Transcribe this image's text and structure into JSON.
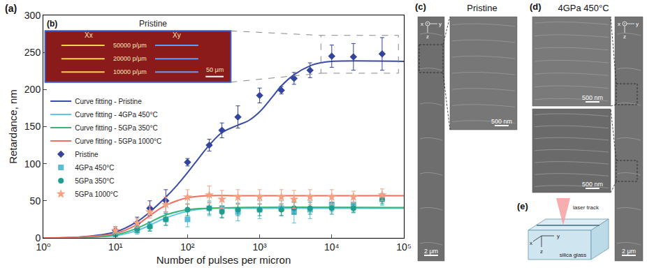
{
  "chart_data": {
    "type": "scatter",
    "annotations": [
      "(a)"
    ],
    "x_label": "Number of pulses per micron",
    "y_label": "Retardance, nm",
    "log": "x",
    "xlim": [
      1,
      100000
    ],
    "xticks": [
      {
        "value": 1,
        "label": "10⁰"
      },
      {
        "value": 10,
        "label": "10¹"
      },
      {
        "value": 100,
        "label": "10²"
      },
      {
        "value": 1000,
        "label": "10³"
      },
      {
        "value": 10000,
        "label": "10⁴"
      },
      {
        "value": 100000,
        "label": "10⁵"
      }
    ],
    "ylim": [
      0,
      300
    ],
    "yticks": [
      0,
      50,
      100,
      150,
      200,
      250,
      300
    ],
    "grid": false,
    "legend": "left",
    "series": [
      {
        "name": "Curve fitting - Pristine",
        "type": "line",
        "line_style": "solid",
        "color": "#3a4ba8",
        "x": [
          1,
          3,
          10,
          20,
          30,
          50,
          70,
          100,
          150,
          200,
          300,
          500,
          700,
          1000,
          1500,
          2000,
          3000,
          5000,
          7000,
          10000,
          100000
        ],
        "values": [
          0,
          1,
          8,
          22,
          35,
          55,
          70,
          88,
          110,
          125,
          142,
          152,
          158,
          170,
          190,
          205,
          220,
          232,
          236,
          238,
          238
        ]
      },
      {
        "name": "Curve fitting - 4GPa 450°C",
        "type": "line",
        "line_style": "solid",
        "color": "#5fc8e8",
        "x": [
          1,
          3,
          10,
          20,
          30,
          50,
          100,
          200,
          500,
          100000
        ],
        "values": [
          0,
          0.5,
          3,
          10,
          17,
          27,
          36,
          40,
          40,
          40
        ]
      },
      {
        "name": "Curve fitting - 5GPa 350°C",
        "type": "line",
        "line_style": "solid",
        "color": "#3cb371",
        "x": [
          1,
          3,
          10,
          20,
          30,
          50,
          100,
          200,
          500,
          100000
        ],
        "values": [
          0,
          0.6,
          4,
          13,
          21,
          31,
          38,
          40,
          41,
          41
        ]
      },
      {
        "name": "Curve fitting - 5GPa 1000°C",
        "type": "line",
        "line_style": "solid",
        "color": "#f07060",
        "x": [
          1,
          3,
          10,
          20,
          30,
          50,
          100,
          200,
          500,
          100000
        ],
        "values": [
          0,
          1,
          6,
          18,
          30,
          44,
          54,
          57,
          57,
          57
        ]
      },
      {
        "name": "Pristine",
        "type": "scatter",
        "marker": "diamond",
        "color": "#34449c",
        "x": [
          10,
          20,
          30,
          50,
          100,
          200,
          300,
          500,
          1000,
          2000,
          3000,
          5000,
          10000,
          20000,
          50000
        ],
        "values": [
          10,
          20,
          40,
          50,
          102,
          125,
          145,
          163,
          192,
          199,
          215,
          226,
          245,
          244,
          248
        ],
        "errors": [
          5,
          8,
          10,
          15,
          5,
          8,
          10,
          15,
          10,
          5,
          8,
          10,
          15,
          18,
          22
        ]
      },
      {
        "name": "4GPa 450°C",
        "type": "scatter",
        "marker": "square",
        "color": "#5bbcd6",
        "x": [
          10,
          20,
          30,
          50,
          100,
          200,
          300,
          500,
          1000,
          2000,
          3000,
          5000,
          10000,
          20000,
          50000
        ],
        "values": [
          5,
          10,
          16,
          25,
          25,
          40,
          40,
          35,
          38,
          40,
          35,
          38,
          45,
          45,
          52
        ],
        "errors": [
          3,
          5,
          6,
          8,
          10,
          10,
          12,
          12,
          12,
          10,
          15,
          12,
          10,
          10,
          8
        ]
      },
      {
        "name": "5GPa 350°C",
        "type": "scatter",
        "marker": "circle",
        "color": "#1f9e8f",
        "x": [
          10,
          20,
          30,
          50,
          100,
          200,
          300,
          500,
          1000,
          2000,
          3000,
          5000,
          10000,
          20000,
          50000
        ],
        "values": [
          5,
          12,
          15,
          25,
          38,
          40,
          35,
          38,
          38,
          38,
          40,
          40,
          40,
          40,
          52
        ],
        "errors": [
          3,
          5,
          6,
          8,
          8,
          8,
          8,
          8,
          8,
          8,
          8,
          8,
          8,
          6,
          6
        ]
      },
      {
        "name": "5GPa 1000°C",
        "type": "scatter",
        "marker": "star",
        "color": "#f5a080",
        "x": [
          10,
          20,
          30,
          50,
          100,
          200,
          300,
          500,
          1000,
          2000,
          3000,
          5000,
          10000,
          20000,
          50000
        ],
        "values": [
          10,
          20,
          35,
          45,
          55,
          58,
          52,
          55,
          55,
          55,
          52,
          55,
          55,
          55,
          58
        ],
        "errors": [
          5,
          6,
          8,
          10,
          10,
          12,
          12,
          10,
          10,
          10,
          12,
          10,
          10,
          8,
          8
        ]
      }
    ],
    "inset": {
      "label": "(b)",
      "title": "Pristine",
      "columns": [
        "Xx",
        "Xy"
      ],
      "rows": [
        "50000 p/μm",
        "20000 p/μm",
        "10000 p/μm"
      ],
      "scale_bar": "50 μm"
    }
  },
  "panels": [
    {
      "label": "(c)",
      "title": "Pristine",
      "axes": [
        "x",
        "y",
        "z"
      ],
      "scale_bars": [
        "2 μm",
        "500 nm"
      ]
    },
    {
      "label": "(d)",
      "title": "4GPa 450°C",
      "axes": [
        "x",
        "y",
        "z"
      ],
      "scale_bars": [
        "500 nm",
        "500 nm",
        "2 μm"
      ]
    },
    {
      "label": "(e)",
      "texts": [
        "laser track",
        "silica glass"
      ],
      "axes": [
        "x",
        "y",
        "z"
      ]
    }
  ]
}
